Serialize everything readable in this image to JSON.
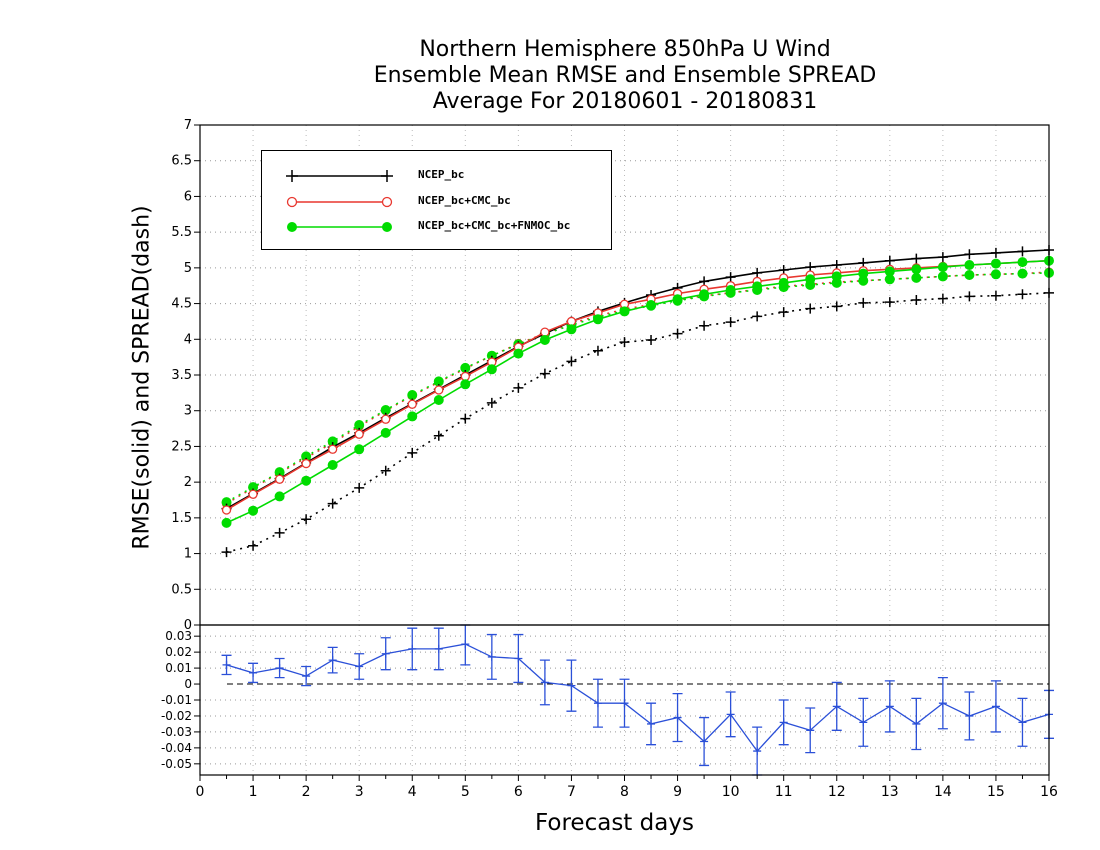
{
  "title_lines": [
    "Northern Hemisphere 850hPa U Wind",
    "Ensemble Mean RMSE and Ensemble SPREAD",
    "Average For 20180601 - 20180831"
  ],
  "ylabel": "RMSE(solid) and SPREAD(dash)",
  "xlabel": "Forecast days",
  "colors": {
    "ncep": "#000000",
    "cmc": "#e8372f",
    "fnmoc": "#00dc00",
    "diff": "#2b50d8"
  },
  "chart_data": [
    {
      "type": "line",
      "xlim": [
        0,
        16
      ],
      "ylim": [
        0,
        7
      ],
      "x_ticks": [
        "0",
        "1",
        "2",
        "3",
        "4",
        "5",
        "6",
        "7",
        "8",
        "9",
        "10",
        "11",
        "12",
        "13",
        "14",
        "15",
        "16"
      ],
      "y_ticks": [
        "0",
        "0.5",
        "1",
        "1.5",
        "2",
        "2.5",
        "3",
        "3.5",
        "4",
        "4.5",
        "5",
        "5.5",
        "6",
        "6.5",
        "7"
      ],
      "grid": true,
      "legend_position": "top-left",
      "x": [
        0.5,
        1,
        1.5,
        2,
        2.5,
        3,
        3.5,
        4,
        4.5,
        5,
        5.5,
        6,
        6.5,
        7,
        7.5,
        8,
        8.5,
        9,
        9.5,
        10,
        10.5,
        11,
        11.5,
        12,
        12.5,
        13,
        13.5,
        14,
        14.5,
        15,
        15.5,
        16
      ],
      "series": [
        {
          "name": "NCEP_bc",
          "kind": "rmse",
          "color_key": "ncep",
          "marker": "plus",
          "values": [
            1.63,
            1.84,
            2.05,
            2.27,
            2.49,
            2.69,
            2.9,
            3.1,
            3.3,
            3.5,
            3.7,
            3.9,
            4.08,
            4.25,
            4.39,
            4.51,
            4.62,
            4.72,
            4.81,
            4.87,
            4.93,
            4.97,
            5.01,
            5.04,
            5.07,
            5.1,
            5.13,
            5.15,
            5.19,
            5.21,
            5.23,
            5.25
          ]
        },
        {
          "name": "NCEP_bc+CMC_bc",
          "kind": "rmse",
          "color_key": "cmc",
          "marker": "circle-open",
          "values": [
            1.61,
            1.83,
            2.04,
            2.26,
            2.46,
            2.67,
            2.88,
            3.09,
            3.29,
            3.48,
            3.68,
            3.89,
            4.1,
            4.25,
            4.37,
            4.49,
            4.56,
            4.64,
            4.7,
            4.75,
            4.81,
            4.86,
            4.9,
            4.93,
            4.96,
            4.98,
            5.0,
            5.02,
            5.04,
            5.06,
            5.08,
            5.1
          ]
        },
        {
          "name": "NCEP_bc+CMC_bc+FNMOC_bc",
          "kind": "rmse",
          "color_key": "fnmoc",
          "marker": "circle-filled",
          "values": [
            1.43,
            1.6,
            1.8,
            2.02,
            2.24,
            2.46,
            2.69,
            2.92,
            3.15,
            3.37,
            3.58,
            3.8,
            3.99,
            4.14,
            4.28,
            4.39,
            4.48,
            4.56,
            4.63,
            4.69,
            4.74,
            4.79,
            4.84,
            4.88,
            4.92,
            4.95,
            4.98,
            5.01,
            5.04,
            5.06,
            5.08,
            5.1
          ]
        },
        {
          "name": "NCEP_bc",
          "kind": "spread",
          "color_key": "ncep",
          "marker": "plus",
          "values": [
            1.02,
            1.11,
            1.29,
            1.48,
            1.7,
            1.92,
            2.16,
            2.41,
            2.65,
            2.89,
            3.11,
            3.32,
            3.52,
            3.69,
            3.84,
            3.96,
            3.99,
            4.08,
            4.19,
            4.24,
            4.32,
            4.38,
            4.43,
            4.46,
            4.51,
            4.52,
            4.55,
            4.57,
            4.6,
            4.61,
            4.63,
            4.65
          ]
        },
        {
          "name": "NCEP_bc+CMC_bc",
          "kind": "spread",
          "color_key": "cmc",
          "marker": "circle-open",
          "values": [
            1.7,
            1.92,
            2.13,
            2.34,
            2.55,
            2.78,
            3.0,
            3.21,
            3.4,
            3.59,
            3.77,
            3.94,
            4.08,
            4.22,
            4.33,
            4.42,
            4.49,
            4.55,
            4.61,
            4.65,
            4.7,
            4.74,
            4.77,
            4.8,
            4.82,
            4.84,
            4.86,
            4.88,
            4.9,
            4.91,
            4.92,
            4.94
          ]
        },
        {
          "name": "NCEP_bc+CMC_bc+FNMOC_bc",
          "kind": "spread",
          "color_key": "fnmoc",
          "marker": "circle-filled",
          "values": [
            1.72,
            1.93,
            2.14,
            2.36,
            2.57,
            2.8,
            3.01,
            3.22,
            3.41,
            3.6,
            3.77,
            3.93,
            4.07,
            4.2,
            4.31,
            4.4,
            4.47,
            4.54,
            4.6,
            4.65,
            4.69,
            4.73,
            4.76,
            4.79,
            4.82,
            4.84,
            4.86,
            4.88,
            4.9,
            4.91,
            4.92,
            4.93
          ]
        }
      ]
    },
    {
      "type": "line",
      "xlim": [
        0,
        16
      ],
      "ylim": [
        -0.057,
        0.037
      ],
      "x_ticks": [
        "0",
        "1",
        "2",
        "3",
        "4",
        "5",
        "6",
        "7",
        "8",
        "9",
        "10",
        "11",
        "12",
        "13",
        "14",
        "15",
        "16"
      ],
      "y_ticks": [
        "0.03",
        "0.02",
        "0.01",
        "0",
        "-0.01",
        "-0.02",
        "-0.03",
        "-0.04",
        "-0.05"
      ],
      "grid": true,
      "reference_line": 0,
      "x": [
        0.5,
        1,
        1.5,
        2,
        2.5,
        3,
        3.5,
        4,
        4.5,
        5,
        5.5,
        6,
        6.5,
        7,
        7.5,
        8,
        8.5,
        9,
        9.5,
        10,
        10.5,
        11,
        11.5,
        12,
        12.5,
        13,
        13.5,
        14,
        14.5,
        15,
        15.5,
        16
      ],
      "series": [
        {
          "color_key": "diff",
          "values": [
            0.012,
            0.007,
            0.01,
            0.005,
            0.015,
            0.011,
            0.019,
            0.022,
            0.022,
            0.025,
            0.017,
            0.016,
            0.001,
            -0.001,
            -0.012,
            -0.012,
            -0.025,
            -0.021,
            -0.036,
            -0.019,
            -0.042,
            -0.024,
            -0.029,
            -0.014,
            -0.024,
            -0.014,
            -0.025,
            -0.012,
            -0.02,
            -0.014,
            -0.024,
            -0.019
          ],
          "lower": [
            0.006,
            0.001,
            0.004,
            -0.001,
            0.007,
            0.003,
            0.009,
            0.009,
            0.009,
            0.012,
            0.003,
            0.001,
            -0.013,
            -0.017,
            -0.027,
            -0.027,
            -0.038,
            -0.036,
            -0.051,
            -0.033,
            -0.057,
            -0.038,
            -0.043,
            -0.029,
            -0.039,
            -0.03,
            -0.041,
            -0.028,
            -0.035,
            -0.03,
            -0.039,
            -0.034
          ],
          "upper": [
            0.018,
            0.013,
            0.016,
            0.011,
            0.023,
            0.019,
            0.029,
            0.035,
            0.035,
            0.038,
            0.031,
            0.031,
            0.015,
            0.015,
            0.003,
            0.003,
            -0.012,
            -0.006,
            -0.021,
            -0.005,
            -0.027,
            -0.01,
            -0.015,
            0.001,
            -0.009,
            0.002,
            -0.009,
            0.004,
            -0.005,
            0.002,
            -0.009,
            -0.004
          ]
        }
      ]
    }
  ]
}
